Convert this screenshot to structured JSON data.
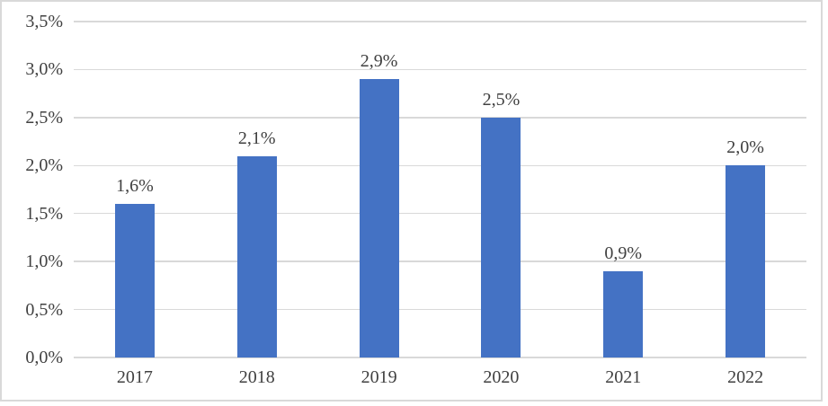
{
  "chart_data": {
    "type": "bar",
    "title": "",
    "xlabel": "",
    "ylabel": "",
    "categories": [
      "2017",
      "2018",
      "2019",
      "2020",
      "2021",
      "2022"
    ],
    "values": [
      1.6,
      2.1,
      2.9,
      2.5,
      0.9,
      2.0
    ],
    "data_labels": [
      "1,6%",
      "2,1%",
      "2,9%",
      "2,5%",
      "0,9%",
      "2,0%"
    ],
    "y_ticks": [
      "0,0%",
      "0,5%",
      "1,0%",
      "1,5%",
      "2,0%",
      "2,5%",
      "3,0%",
      "3,5%"
    ],
    "y_tick_values": [
      0.0,
      0.5,
      1.0,
      1.5,
      2.0,
      2.5,
      3.0,
      3.5
    ],
    "ylim": [
      0,
      3.5
    ],
    "grid": "horizontal",
    "legend": "none",
    "bar_color": "#4472C4",
    "gridline_color": "#D9D9D9",
    "text_color": "#404040",
    "frame_border_color": "#D9D9D9",
    "background_color": "#FFFFFF"
  }
}
